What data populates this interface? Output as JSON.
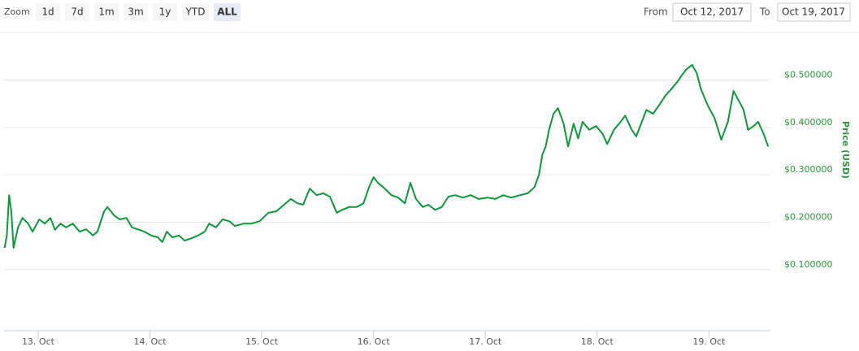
{
  "range_selector": {
    "label": "Zoom",
    "buttons": [
      "1d",
      "7d",
      "1m",
      "3m",
      "1y",
      "YTD",
      "ALL"
    ],
    "selected": "ALL",
    "from_label": "From",
    "from": "Oct 12, 2017",
    "to_label": "To",
    "to": "Oct 19, 2017"
  },
  "chart_data": {
    "type": "line",
    "y_label": "Price (USD)",
    "y_axis_side": "right",
    "color": "#0a9a3a",
    "grid": true,
    "xlim": [
      12.695,
      19.55
    ],
    "xticks": [
      {
        "value": 13,
        "label": "13. Oct"
      },
      {
        "value": 14,
        "label": "14. Oct"
      },
      {
        "value": 15,
        "label": "15. Oct"
      },
      {
        "value": 16,
        "label": "16. Oct"
      },
      {
        "value": 17,
        "label": "17. Oct"
      },
      {
        "value": 18,
        "label": "18. Oct"
      },
      {
        "value": 19,
        "label": "19. Oct"
      }
    ],
    "ylim": [
      -0.029,
      0.597
    ],
    "yticks": [
      {
        "value": 0.1,
        "label": "$0.100000"
      },
      {
        "value": 0.2,
        "label": "$0.200000"
      },
      {
        "value": 0.3,
        "label": "$0.300000"
      },
      {
        "value": 0.4,
        "label": "$0.400000"
      },
      {
        "value": 0.5,
        "label": "$0.500000"
      }
    ],
    "x": [
      12.7,
      12.72,
      12.74,
      12.76,
      12.78,
      12.82,
      12.86,
      12.91,
      12.95,
      13.01,
      13.06,
      13.11,
      13.15,
      13.2,
      13.25,
      13.31,
      13.37,
      13.43,
      13.49,
      13.53,
      13.59,
      13.62,
      13.68,
      13.73,
      13.79,
      13.84,
      13.89,
      13.95,
      14.01,
      14.07,
      14.11,
      14.15,
      14.2,
      14.26,
      14.31,
      14.37,
      14.43,
      14.49,
      14.53,
      14.59,
      14.65,
      14.71,
      14.76,
      14.84,
      14.91,
      14.98,
      15.06,
      15.13,
      15.2,
      15.26,
      15.32,
      15.37,
      15.43,
      15.49,
      15.55,
      15.61,
      15.67,
      15.72,
      15.78,
      15.85,
      15.91,
      15.96,
      16.0,
      16.04,
      16.1,
      16.16,
      16.22,
      16.28,
      16.33,
      16.38,
      16.44,
      16.49,
      16.55,
      16.61,
      16.67,
      16.73,
      16.8,
      16.87,
      16.94,
      17.02,
      17.09,
      17.16,
      17.23,
      17.31,
      17.38,
      17.44,
      17.48,
      17.51,
      17.54,
      17.57,
      17.61,
      17.65,
      17.7,
      17.74,
      17.79,
      17.83,
      17.87,
      17.93,
      17.99,
      18.05,
      18.09,
      18.15,
      18.21,
      18.25,
      18.31,
      18.35,
      18.4,
      18.44,
      18.5,
      18.56,
      18.61,
      18.66,
      18.72,
      18.76,
      18.8,
      18.85,
      18.89,
      18.93,
      18.99,
      19.05,
      19.11,
      19.17,
      19.22,
      19.27,
      19.31,
      19.35,
      19.4,
      19.44,
      19.49,
      19.53
    ],
    "values": [
      0.146,
      0.172,
      0.257,
      0.223,
      0.146,
      0.189,
      0.209,
      0.197,
      0.18,
      0.206,
      0.197,
      0.209,
      0.184,
      0.197,
      0.189,
      0.197,
      0.18,
      0.185,
      0.172,
      0.18,
      0.223,
      0.232,
      0.214,
      0.206,
      0.209,
      0.189,
      0.185,
      0.18,
      0.172,
      0.168,
      0.158,
      0.18,
      0.168,
      0.172,
      0.161,
      0.166,
      0.172,
      0.18,
      0.197,
      0.189,
      0.206,
      0.202,
      0.192,
      0.197,
      0.197,
      0.202,
      0.22,
      0.223,
      0.237,
      0.249,
      0.24,
      0.237,
      0.271,
      0.257,
      0.261,
      0.254,
      0.22,
      0.226,
      0.232,
      0.232,
      0.24,
      0.274,
      0.295,
      0.283,
      0.271,
      0.257,
      0.252,
      0.24,
      0.283,
      0.249,
      0.232,
      0.237,
      0.226,
      0.232,
      0.254,
      0.257,
      0.252,
      0.257,
      0.249,
      0.252,
      0.249,
      0.257,
      0.252,
      0.257,
      0.261,
      0.274,
      0.3,
      0.343,
      0.36,
      0.395,
      0.429,
      0.441,
      0.408,
      0.36,
      0.408,
      0.377,
      0.412,
      0.395,
      0.403,
      0.386,
      0.365,
      0.395,
      0.412,
      0.425,
      0.395,
      0.381,
      0.412,
      0.437,
      0.429,
      0.449,
      0.467,
      0.48,
      0.497,
      0.511,
      0.523,
      0.532,
      0.515,
      0.48,
      0.446,
      0.42,
      0.374,
      0.412,
      0.477,
      0.455,
      0.437,
      0.395,
      0.403,
      0.412,
      0.386,
      0.36
    ]
  }
}
